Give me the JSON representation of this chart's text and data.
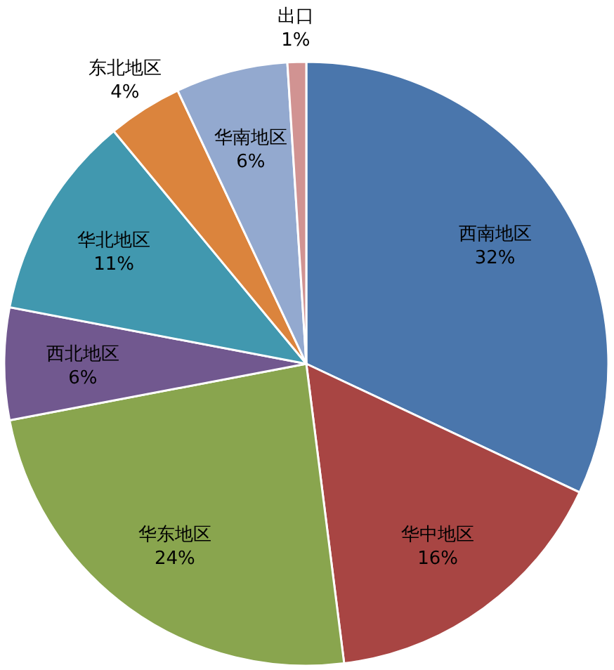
{
  "chart_data": {
    "type": "pie",
    "categories": [
      "西南地区",
      "华中地区",
      "华东地区",
      "西北地区",
      "华北地区",
      "东北地区",
      "华南地区",
      "出口"
    ],
    "values": [
      32,
      16,
      24,
      6,
      11,
      4,
      6,
      1
    ],
    "colors": [
      "#4a76ac",
      "#a84543",
      "#89a54e",
      "#71588f",
      "#4198af",
      "#db843d",
      "#93a9cf",
      "#d19392"
    ],
    "value_labels": [
      "32%",
      "16%",
      "24%",
      "6%",
      "11%",
      "4%",
      "6%",
      "1%"
    ]
  }
}
